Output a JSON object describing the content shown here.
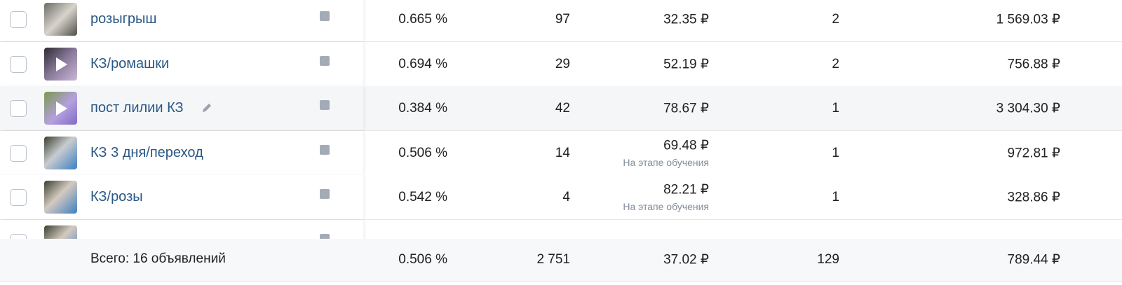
{
  "rows": [
    {
      "name": "розыгрыш",
      "ctr": "0.665 %",
      "count": "97",
      "price": "32.35 ₽",
      "conversions": "2",
      "cost": "1 569.03 ₽"
    },
    {
      "name": "КЗ/ромашки",
      "ctr": "0.694 %",
      "count": "29",
      "price": "52.19 ₽",
      "conversions": "2",
      "cost": "756.88 ₽"
    },
    {
      "name": "пост лилии КЗ",
      "ctr": "0.384 %",
      "count": "42",
      "price": "78.67 ₽",
      "conversions": "1",
      "cost": "3 304.30 ₽"
    },
    {
      "name": "КЗ 3 дня/переход",
      "ctr": "0.506 %",
      "count": "14",
      "price": "69.48 ₽",
      "price_note": "На этапе обучения",
      "conversions": "1",
      "cost": "972.81 ₽"
    },
    {
      "name": "КЗ/розы",
      "ctr": "0.542 %",
      "count": "4",
      "price": "82.21 ₽",
      "price_note": "На этапе обучения",
      "conversions": "1",
      "cost": "328.86 ₽"
    }
  ],
  "footer": {
    "label": "Всего: 16 объявлений",
    "ctr": "0.506 %",
    "count": "2 751",
    "price": "37.02 ₽",
    "conversions": "129",
    "cost": "789.44 ₽"
  }
}
